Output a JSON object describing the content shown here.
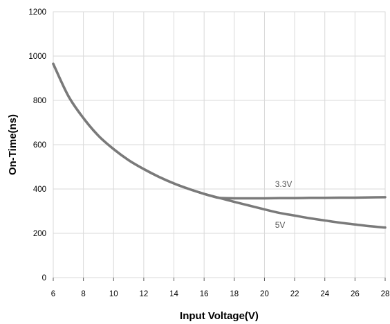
{
  "chart_data": {
    "type": "line",
    "title": "",
    "xlabel": "Input Voltage(V)",
    "ylabel": "On-Time(ns)",
    "xlim": [
      6,
      28
    ],
    "ylim": [
      0,
      1200
    ],
    "x_ticks": [
      6,
      8,
      10,
      12,
      14,
      16,
      18,
      20,
      22,
      24,
      26,
      28
    ],
    "y_ticks": [
      0,
      200,
      400,
      600,
      800,
      1000,
      1200
    ],
    "grid": true,
    "legend": "none",
    "series": [
      {
        "name": "3.3V",
        "color": "#7a7a7a",
        "x": [
          6,
          7,
          8,
          9,
          10,
          11,
          12,
          13,
          14,
          15,
          16,
          16.5,
          17,
          18,
          19,
          20,
          21,
          22,
          23,
          24,
          25,
          26,
          27,
          28
        ],
        "y": [
          965,
          820,
          720,
          640,
          580,
          530,
          490,
          455,
          425,
          400,
          378,
          368,
          360,
          358,
          358,
          358,
          359,
          359,
          360,
          360,
          361,
          361,
          362,
          363
        ]
      },
      {
        "name": "5V",
        "color": "#7a7a7a",
        "x": [
          6,
          7,
          8,
          9,
          10,
          11,
          12,
          13,
          14,
          15,
          16,
          17,
          18,
          19,
          20,
          21,
          22,
          23,
          24,
          25,
          26,
          27,
          28
        ],
        "y": [
          965,
          820,
          720,
          640,
          580,
          530,
          490,
          455,
          425,
          400,
          378,
          360,
          342,
          325,
          308,
          292,
          280,
          268,
          258,
          248,
          240,
          232,
          226
        ]
      }
    ],
    "annotations": [
      {
        "text": "3.3V",
        "x": 20.7,
        "y": 410
      },
      {
        "text": "5V",
        "x": 20.7,
        "y": 225
      }
    ]
  }
}
